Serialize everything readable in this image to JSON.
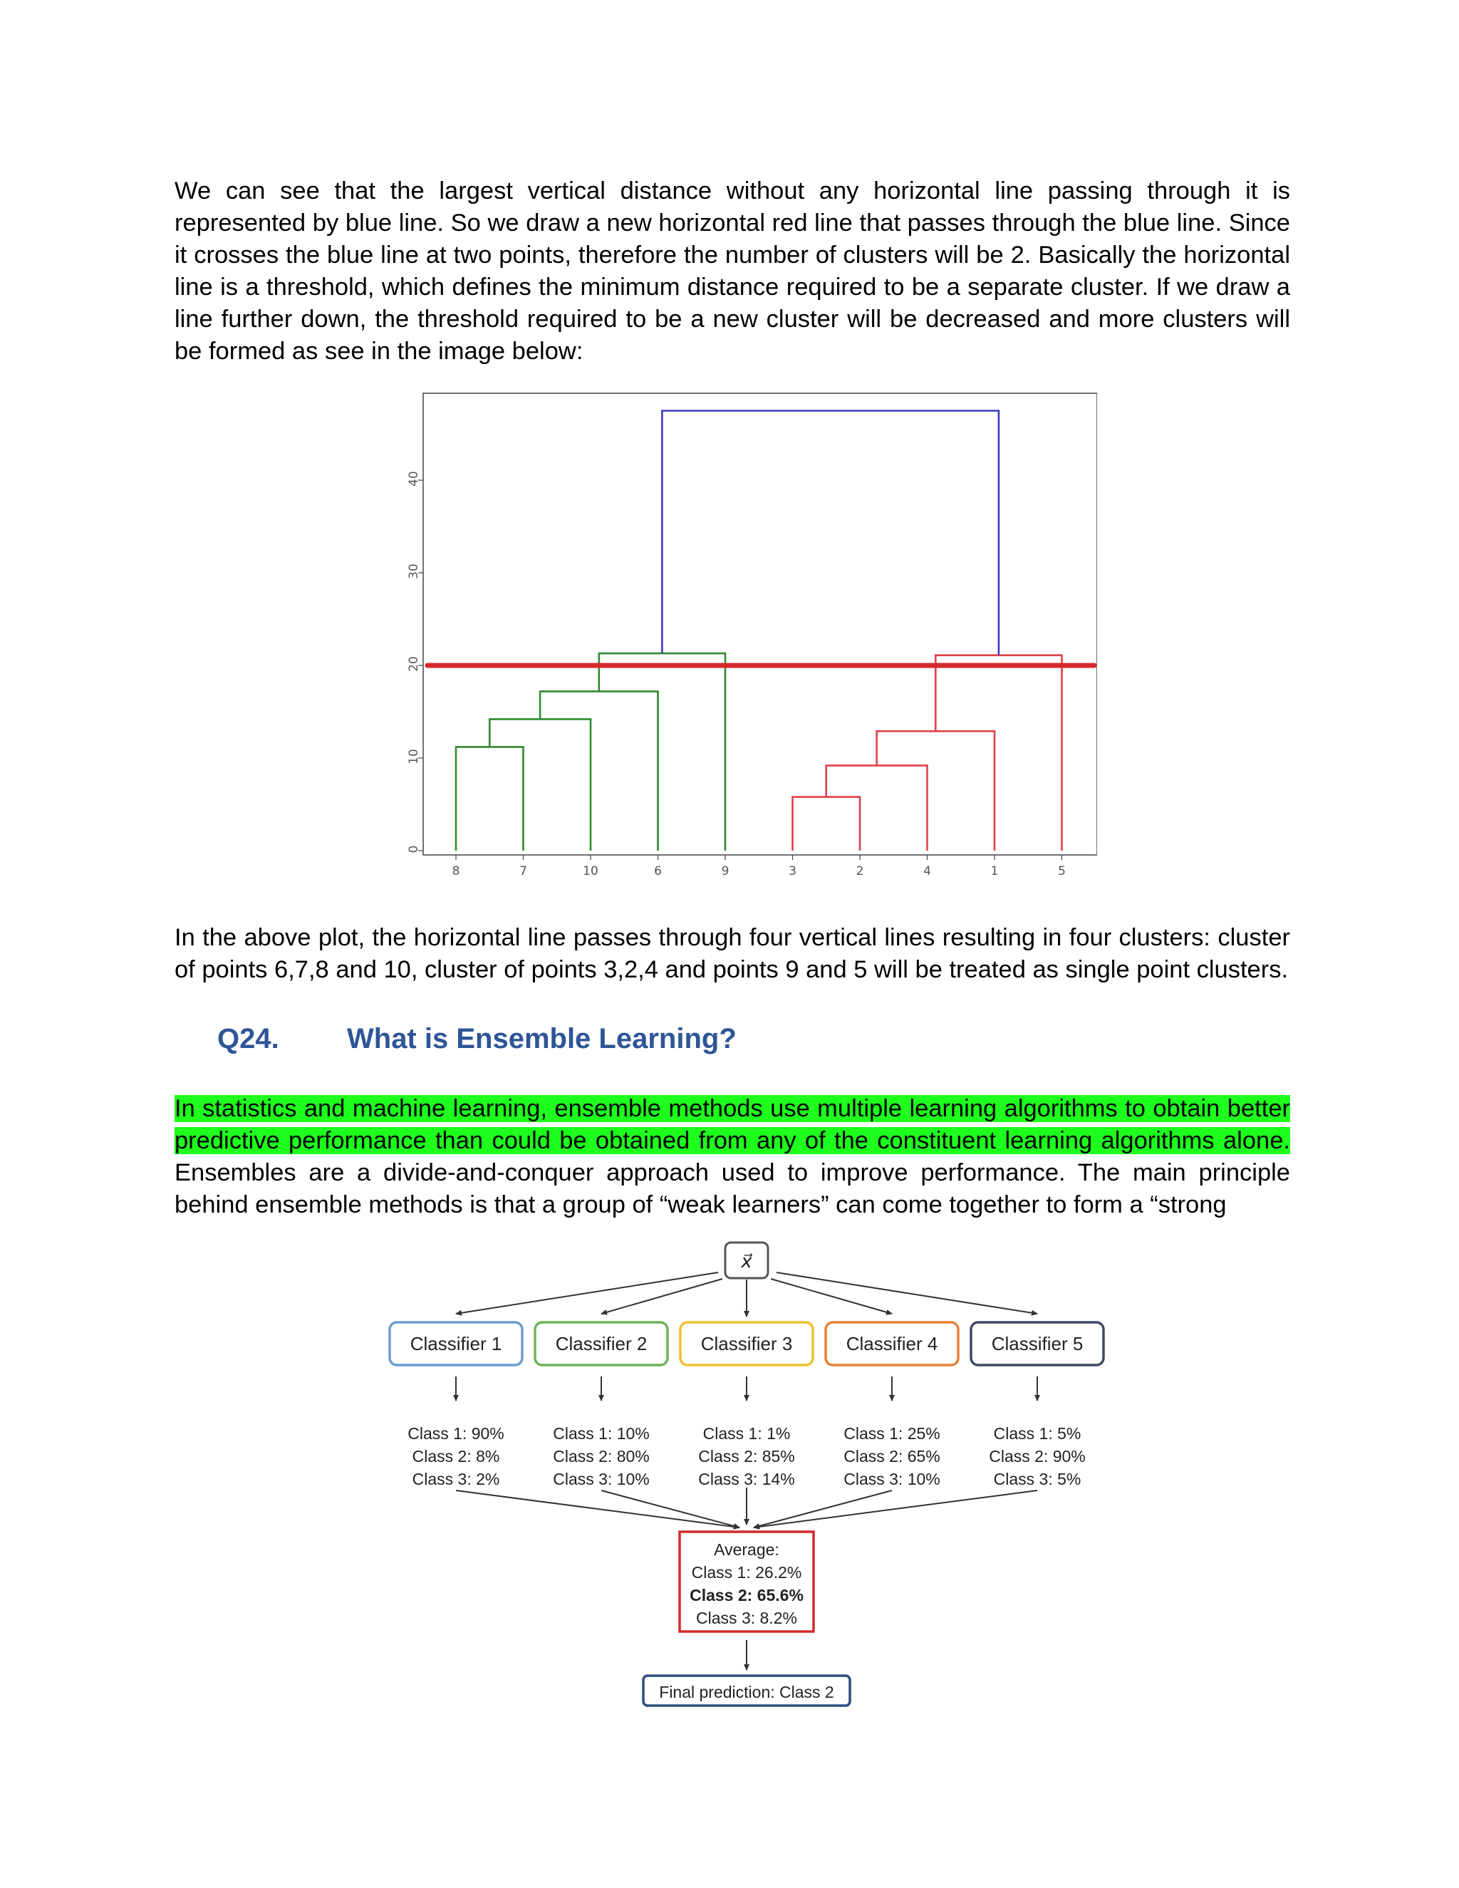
{
  "paragraphs": {
    "intro": "We can see that the largest vertical distance without any horizontal line passing through it is represented by blue line. So we draw a new horizontal red line that passes through the blue line. Since it crosses the blue line at two points, therefore the number of clusters will be 2. Basically the horizontal line is a threshold, which defines the minimum distance required to be a separate cluster. If we draw a line further down, the threshold required to be a new cluster will be decreased and more clusters will be formed as see in the image below:",
    "after_plot": "In the above plot, the horizontal line passes through four vertical lines resulting in four clusters: cluster of points 6,7,8 and 10, cluster of points 3,2,4 and points 9 and 5 will be treated as single point clusters.",
    "ensemble_highlight": "In statistics and machine learning, ensemble methods use multiple learning algorithms to obtain better predictive performance than could be obtained from any of the constituent learning algorithms alone.",
    "ensemble_rest": " Ensembles are a divide-and-conquer approach used to improve performance. The main principle behind ensemble methods is that a group of “weak learners” can come together to form a “strong"
  },
  "question": {
    "number": "Q24.",
    "title": "What is Ensemble Learning?"
  },
  "chart_data": {
    "type": "dendrogram",
    "title": "",
    "xlabel": "",
    "ylabel": "",
    "ylim": [
      0,
      48
    ],
    "yticks": [
      0,
      10,
      20,
      30,
      40
    ],
    "leaves": [
      "8",
      "7",
      "10",
      "6",
      "9",
      "3",
      "2",
      "4",
      "1",
      "5"
    ],
    "merges": [
      {
        "left": "8",
        "right": "7",
        "height": 11.2,
        "color": "#2e8b2e"
      },
      {
        "left": "8-7",
        "right": "10",
        "height": 14.2,
        "color": "#2e8b2e"
      },
      {
        "left": "8-7-10",
        "right": "6",
        "height": 17.2,
        "color": "#2e8b2e"
      },
      {
        "left": "8-7-10-6",
        "right": "9",
        "height": 21.3,
        "color": "#2e8b2e"
      },
      {
        "left": "3",
        "right": "2",
        "height": 5.8,
        "color": "#e0414a"
      },
      {
        "left": "3-2",
        "right": "4",
        "height": 9.2,
        "color": "#e0414a"
      },
      {
        "left": "3-2-4",
        "right": "1",
        "height": 12.9,
        "color": "#e0414a"
      },
      {
        "left": "3-2-4-1",
        "right": "5",
        "height": 21.1,
        "color": "#e0414a"
      },
      {
        "left": "green-cluster",
        "right": "red-cluster",
        "height": 47.5,
        "color": "#3b3bc4"
      }
    ],
    "threshold": {
      "y": 20,
      "color": "#d42a2a"
    }
  },
  "ensemble": {
    "input_label": "x⃗",
    "classifiers": [
      {
        "label": "Classifier 1",
        "color": "#6b9bd1",
        "probs": [
          "Class 1: 90%",
          "Class 2: 8%",
          "Class 3: 2%"
        ]
      },
      {
        "label": "Classifier 2",
        "color": "#6db35a",
        "probs": [
          "Class 1: 10%",
          "Class 2: 80%",
          "Class 3: 10%"
        ]
      },
      {
        "label": "Classifier 3",
        "color": "#f2c12e",
        "probs": [
          "Class 1: 1%",
          "Class 2: 85%",
          "Class 3: 14%"
        ]
      },
      {
        "label": "Classifier 4",
        "color": "#e8823a",
        "probs": [
          "Class 1: 25%",
          "Class 2: 65%",
          "Class 3: 10%"
        ]
      },
      {
        "label": "Classifier 5",
        "color": "#3d4a63",
        "probs": [
          "Class 1: 5%",
          "Class 2: 90%",
          "Class 3: 5%"
        ]
      }
    ],
    "average": {
      "title": "Average:",
      "lines": [
        "Class 1: 26.2%",
        "Class 2: 65.6%",
        "Class 3: 8.2%"
      ],
      "bold_index": 1,
      "color": "#d42a2a"
    },
    "final": {
      "label": "Final prediction: Class 2",
      "color": "#2e4d80"
    }
  }
}
